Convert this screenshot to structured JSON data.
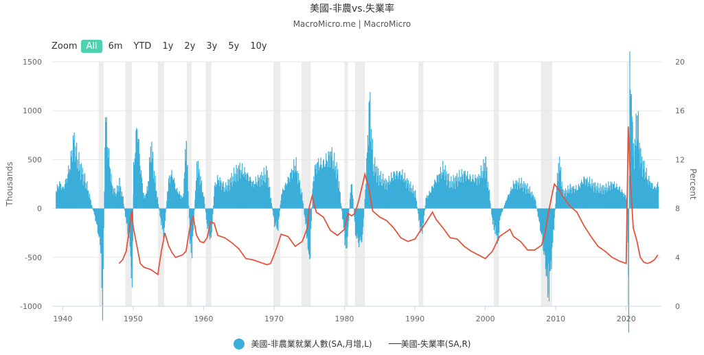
{
  "title": "美國-非農vs.失業率",
  "subtitle": "MacroMicro.me | MacroMicro",
  "range_selector": {
    "zoom_label": "Zoom",
    "buttons": [
      "All",
      "6m",
      "YTD",
      "1y",
      "2y",
      "3y",
      "5y",
      "10y"
    ],
    "active": "All"
  },
  "legend": {
    "items": [
      {
        "label": "美國-非農業就業人數(SA,月增,L)",
        "color": "#3aaed8",
        "symbol": "circle"
      },
      {
        "label": "美國-失業率(SA,R)",
        "color": "#e5533d",
        "symbol": "line"
      }
    ]
  },
  "chart_data": {
    "type": "bar",
    "x_axis": {
      "range": [
        1938.5,
        2025.0
      ],
      "ticks": [
        "1940",
        "1950",
        "1960",
        "1970",
        "1980",
        "1990",
        "2000",
        "2010",
        "2020"
      ]
    },
    "y_left": {
      "label": "Thousands",
      "range": [
        -1000,
        1500
      ],
      "ticks": [
        "-1000",
        "-500",
        "0",
        "500",
        "1000",
        "1500"
      ]
    },
    "y_right": {
      "label": "Percent",
      "range": [
        0,
        20
      ],
      "ticks": [
        "0",
        "4",
        "8",
        "12",
        "16",
        "20"
      ]
    },
    "grid": true,
    "legend_position": "bottom",
    "recessions": [
      [
        1945.1,
        1945.8
      ],
      [
        1948.9,
        1949.8
      ],
      [
        1953.5,
        1954.4
      ],
      [
        1957.6,
        1958.3
      ],
      [
        1960.3,
        1961.1
      ],
      [
        1969.9,
        1970.9
      ],
      [
        1973.9,
        1975.2
      ],
      [
        1980.0,
        1980.5
      ],
      [
        1981.5,
        1982.9
      ],
      [
        1990.5,
        1991.2
      ],
      [
        2001.2,
        2001.9
      ],
      [
        2007.9,
        2009.5
      ],
      [
        2020.1,
        2020.35
      ]
    ],
    "series": [
      {
        "name": "美國-非農業就業人數(SA,月增,L)",
        "type": "bar",
        "color": "#3aaed8",
        "points": [
          [
            1939.0,
            180
          ],
          [
            1939.5,
            250
          ],
          [
            1940.0,
            200
          ],
          [
            1940.5,
            300
          ],
          [
            1941.0,
            450
          ],
          [
            1941.5,
            700
          ],
          [
            1942.0,
            500
          ],
          [
            1942.5,
            400
          ],
          [
            1943.0,
            300
          ],
          [
            1943.5,
            200
          ],
          [
            1944.0,
            50
          ],
          [
            1944.5,
            -80
          ],
          [
            1945.0,
            -250
          ],
          [
            1945.4,
            -450
          ],
          [
            1945.6,
            -1000
          ],
          [
            1946.0,
            940
          ],
          [
            1946.5,
            500
          ],
          [
            1947.0,
            200
          ],
          [
            1947.5,
            150
          ],
          [
            1948.0,
            250
          ],
          [
            1948.5,
            100
          ],
          [
            1949.0,
            -150
          ],
          [
            1949.5,
            -350
          ],
          [
            1949.8,
            -830
          ],
          [
            1950.0,
            400
          ],
          [
            1950.5,
            850
          ],
          [
            1951.0,
            400
          ],
          [
            1951.5,
            100
          ],
          [
            1952.0,
            200
          ],
          [
            1952.5,
            650
          ],
          [
            1953.0,
            300
          ],
          [
            1953.5,
            50
          ],
          [
            1954.0,
            -180
          ],
          [
            1954.3,
            -250
          ],
          [
            1955.0,
            300
          ],
          [
            1955.5,
            350
          ],
          [
            1956.0,
            200
          ],
          [
            1956.5,
            150
          ],
          [
            1957.0,
            100
          ],
          [
            1957.5,
            680
          ],
          [
            1958.0,
            -300
          ],
          [
            1958.3,
            -450
          ],
          [
            1958.8,
            200
          ],
          [
            1959.0,
            450
          ],
          [
            1959.5,
            300
          ],
          [
            1960.0,
            100
          ],
          [
            1960.5,
            -200
          ],
          [
            1961.0,
            -330
          ],
          [
            1961.5,
            220
          ],
          [
            1962.0,
            300
          ],
          [
            1963.0,
            200
          ],
          [
            1964.0,
            300
          ],
          [
            1965.0,
            400
          ],
          [
            1966.0,
            350
          ],
          [
            1967.0,
            250
          ],
          [
            1968.0,
            300
          ],
          [
            1969.0,
            350
          ],
          [
            1970.0,
            -150
          ],
          [
            1970.5,
            -200
          ],
          [
            1971.0,
            150
          ],
          [
            1972.0,
            300
          ],
          [
            1973.0,
            450
          ],
          [
            1974.0,
            100
          ],
          [
            1974.8,
            -380
          ],
          [
            1975.0,
            -550
          ],
          [
            1975.5,
            300
          ],
          [
            1976.0,
            450
          ],
          [
            1977.0,
            450
          ],
          [
            1978.0,
            550
          ],
          [
            1979.0,
            350
          ],
          [
            1980.0,
            -300
          ],
          [
            1980.3,
            -420
          ],
          [
            1980.8,
            200
          ],
          [
            1981.0,
            250
          ],
          [
            1981.5,
            -250
          ],
          [
            1982.0,
            -350
          ],
          [
            1982.5,
            -300
          ],
          [
            1983.0,
            300
          ],
          [
            1983.5,
            1110
          ],
          [
            1984.0,
            450
          ],
          [
            1985.0,
            300
          ],
          [
            1986.0,
            250
          ],
          [
            1987.0,
            350
          ],
          [
            1988.0,
            350
          ],
          [
            1989.0,
            250
          ],
          [
            1990.0,
            150
          ],
          [
            1990.7,
            -200
          ],
          [
            1991.0,
            -250
          ],
          [
            1991.5,
            100
          ],
          [
            1992.0,
            150
          ],
          [
            1993.0,
            300
          ],
          [
            1994.0,
            400
          ],
          [
            1995.0,
            250
          ],
          [
            1996.0,
            300
          ],
          [
            1997.0,
            350
          ],
          [
            1998.0,
            300
          ],
          [
            1999.0,
            300
          ],
          [
            2000.0,
            450
          ],
          [
            2001.0,
            -150
          ],
          [
            2001.8,
            -320
          ],
          [
            2002.0,
            -100
          ],
          [
            2003.0,
            100
          ],
          [
            2004.0,
            250
          ],
          [
            2005.0,
            250
          ],
          [
            2006.0,
            200
          ],
          [
            2007.0,
            100
          ],
          [
            2008.0,
            -300
          ],
          [
            2008.8,
            -750
          ],
          [
            2009.0,
            -820
          ],
          [
            2009.5,
            -350
          ],
          [
            2010.0,
            150
          ],
          [
            2010.4,
            500
          ],
          [
            2011.0,
            150
          ],
          [
            2012.0,
            200
          ],
          [
            2013.0,
            200
          ],
          [
            2014.0,
            300
          ],
          [
            2015.0,
            250
          ],
          [
            2016.0,
            200
          ],
          [
            2017.0,
            200
          ],
          [
            2018.0,
            250
          ],
          [
            2019.0,
            200
          ],
          [
            2020.1,
            100
          ],
          [
            2020.3,
            -1000
          ],
          [
            2020.45,
            1500
          ],
          [
            2020.6,
            1400
          ],
          [
            2020.9,
            600
          ],
          [
            2021.0,
            500
          ],
          [
            2021.5,
            900
          ],
          [
            2022.0,
            500
          ],
          [
            2022.5,
            400
          ],
          [
            2023.0,
            300
          ],
          [
            2023.5,
            250
          ],
          [
            2024.0,
            200
          ],
          [
            2024.5,
            250
          ]
        ]
      },
      {
        "name": "美國-失業率(SA,R)",
        "type": "line",
        "color": "#e5533d",
        "points": [
          [
            1948.0,
            3.5
          ],
          [
            1948.5,
            3.8
          ],
          [
            1949.0,
            4.5
          ],
          [
            1949.5,
            6.5
          ],
          [
            1949.8,
            7.8
          ],
          [
            1950.0,
            6.5
          ],
          [
            1950.5,
            5.0
          ],
          [
            1951.0,
            3.5
          ],
          [
            1951.5,
            3.2
          ],
          [
            1952.0,
            3.1
          ],
          [
            1952.5,
            3.0
          ],
          [
            1953.0,
            2.8
          ],
          [
            1953.5,
            2.6
          ],
          [
            1954.0,
            4.5
          ],
          [
            1954.5,
            6.0
          ],
          [
            1955.0,
            5.0
          ],
          [
            1955.5,
            4.4
          ],
          [
            1956.0,
            4.0
          ],
          [
            1957.0,
            4.2
          ],
          [
            1957.5,
            4.5
          ],
          [
            1958.0,
            6.3
          ],
          [
            1958.5,
            7.4
          ],
          [
            1959.0,
            5.8
          ],
          [
            1959.5,
            5.3
          ],
          [
            1960.0,
            5.2
          ],
          [
            1960.5,
            5.6
          ],
          [
            1961.0,
            6.9
          ],
          [
            1961.5,
            6.8
          ],
          [
            1962.0,
            5.8
          ],
          [
            1963.0,
            5.6
          ],
          [
            1964.0,
            5.2
          ],
          [
            1965.0,
            4.7
          ],
          [
            1966.0,
            3.9
          ],
          [
            1967.0,
            3.8
          ],
          [
            1968.0,
            3.6
          ],
          [
            1969.0,
            3.4
          ],
          [
            1969.5,
            3.5
          ],
          [
            1970.0,
            4.2
          ],
          [
            1970.5,
            5.0
          ],
          [
            1971.0,
            5.9
          ],
          [
            1972.0,
            5.7
          ],
          [
            1973.0,
            4.9
          ],
          [
            1974.0,
            5.3
          ],
          [
            1974.8,
            6.5
          ],
          [
            1975.0,
            8.1
          ],
          [
            1975.4,
            9.0
          ],
          [
            1976.0,
            7.7
          ],
          [
            1977.0,
            7.3
          ],
          [
            1978.0,
            6.2
          ],
          [
            1979.0,
            5.8
          ],
          [
            1980.0,
            6.3
          ],
          [
            1980.5,
            7.6
          ],
          [
            1981.0,
            7.4
          ],
          [
            1981.5,
            7.6
          ],
          [
            1982.0,
            8.6
          ],
          [
            1982.9,
            10.8
          ],
          [
            1983.5,
            9.6
          ],
          [
            1984.0,
            7.8
          ],
          [
            1985.0,
            7.3
          ],
          [
            1986.0,
            7.0
          ],
          [
            1987.0,
            6.4
          ],
          [
            1988.0,
            5.6
          ],
          [
            1989.0,
            5.3
          ],
          [
            1990.0,
            5.5
          ],
          [
            1990.8,
            6.2
          ],
          [
            1991.5,
            6.8
          ],
          [
            1992.5,
            7.7
          ],
          [
            1993.0,
            7.1
          ],
          [
            1994.0,
            6.4
          ],
          [
            1995.0,
            5.6
          ],
          [
            1996.0,
            5.5
          ],
          [
            1997.0,
            4.9
          ],
          [
            1998.0,
            4.5
          ],
          [
            1999.0,
            4.2
          ],
          [
            2000.0,
            3.9
          ],
          [
            2001.0,
            4.5
          ],
          [
            2002.0,
            5.7
          ],
          [
            2003.5,
            6.3
          ],
          [
            2004.0,
            5.7
          ],
          [
            2005.0,
            5.3
          ],
          [
            2006.0,
            4.6
          ],
          [
            2007.0,
            4.6
          ],
          [
            2008.0,
            5.0
          ],
          [
            2008.5,
            6.0
          ],
          [
            2009.0,
            7.8
          ],
          [
            2009.8,
            10.0
          ],
          [
            2010.5,
            9.5
          ],
          [
            2011.0,
            9.0
          ],
          [
            2012.0,
            8.2
          ],
          [
            2013.0,
            7.7
          ],
          [
            2014.0,
            6.6
          ],
          [
            2015.0,
            5.7
          ],
          [
            2016.0,
            4.9
          ],
          [
            2017.0,
            4.5
          ],
          [
            2018.0,
            4.0
          ],
          [
            2019.0,
            3.7
          ],
          [
            2020.0,
            3.5
          ],
          [
            2020.3,
            14.7
          ],
          [
            2020.6,
            10.2
          ],
          [
            2021.0,
            6.4
          ],
          [
            2021.5,
            5.4
          ],
          [
            2022.0,
            4.0
          ],
          [
            2022.5,
            3.6
          ],
          [
            2023.0,
            3.5
          ],
          [
            2023.5,
            3.6
          ],
          [
            2024.0,
            3.8
          ],
          [
            2024.5,
            4.2
          ]
        ]
      }
    ]
  }
}
